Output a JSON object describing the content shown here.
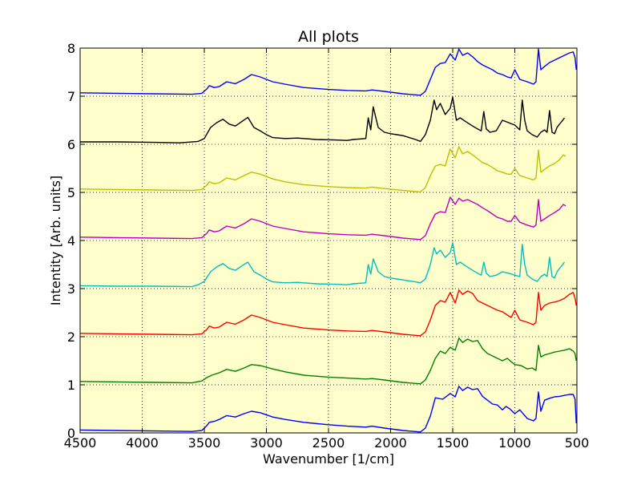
{
  "chart_data": {
    "type": "line",
    "title": "All plots",
    "xlabel": "Wavenumber [1/cm]",
    "ylabel": "Intentity [Arb. units]",
    "xlim": [
      4500,
      500
    ],
    "ylim": [
      0,
      8
    ],
    "x_reversed": true,
    "grid": true,
    "background_color": "#ffffcc",
    "xticks": [
      4500,
      4000,
      3500,
      3000,
      2500,
      2000,
      1500,
      1000,
      500
    ],
    "yticks": [
      0,
      1,
      2,
      3,
      4,
      5,
      6,
      7,
      8
    ],
    "series": [
      {
        "color": "#0000ff",
        "x": [
          4500,
          4200,
          3900,
          3600,
          3520,
          3480,
          3460,
          3420,
          3380,
          3320,
          3250,
          3180,
          3120,
          3050,
          2950,
          2850,
          2700,
          2500,
          2350,
          2200,
          2150,
          2050,
          1900,
          1760,
          1720,
          1680,
          1640,
          1580,
          1520,
          1480,
          1450,
          1420,
          1380,
          1340,
          1300,
          1260,
          1220,
          1180,
          1140,
          1100,
          1070,
          1040,
          1000,
          960,
          900,
          850,
          830,
          810,
          790,
          760,
          720,
          680,
          640,
          600,
          560,
          530,
          515,
          505
        ],
        "y": [
          0.06,
          0.05,
          0.04,
          0.03,
          0.05,
          0.15,
          0.22,
          0.24,
          0.28,
          0.36,
          0.33,
          0.4,
          0.45,
          0.42,
          0.33,
          0.28,
          0.22,
          0.17,
          0.14,
          0.12,
          0.14,
          0.1,
          0.05,
          0.02,
          0.1,
          0.35,
          0.73,
          0.7,
          0.82,
          0.75,
          0.97,
          0.88,
          0.95,
          0.9,
          0.92,
          0.76,
          0.68,
          0.6,
          0.58,
          0.48,
          0.55,
          0.5,
          0.4,
          0.48,
          0.3,
          0.25,
          0.3,
          0.85,
          0.45,
          0.68,
          0.72,
          0.75,
          0.76,
          0.78,
          0.8,
          0.8,
          0.7,
          0.2
        ]
      },
      {
        "color": "#008000",
        "x": [
          4500,
          4200,
          3900,
          3600,
          3520,
          3480,
          3440,
          3380,
          3320,
          3250,
          3180,
          3120,
          3050,
          2950,
          2850,
          2700,
          2500,
          2350,
          2200,
          2150,
          2050,
          1900,
          1760,
          1720,
          1680,
          1640,
          1600,
          1560,
          1520,
          1480,
          1450,
          1420,
          1380,
          1340,
          1300,
          1260,
          1220,
          1180,
          1140,
          1100,
          1060,
          1030,
          1000,
          950,
          900,
          860,
          830,
          810,
          790,
          760,
          720,
          680,
          640,
          600,
          560,
          530,
          515,
          505
        ],
        "y": [
          1.07,
          1.06,
          1.05,
          1.04,
          1.08,
          1.15,
          1.2,
          1.25,
          1.32,
          1.28,
          1.35,
          1.42,
          1.4,
          1.33,
          1.27,
          1.2,
          1.16,
          1.14,
          1.12,
          1.13,
          1.1,
          1.05,
          1.02,
          1.1,
          1.3,
          1.55,
          1.7,
          1.65,
          1.78,
          1.72,
          1.97,
          1.88,
          1.95,
          1.9,
          1.92,
          1.75,
          1.65,
          1.6,
          1.55,
          1.5,
          1.55,
          1.48,
          1.42,
          1.4,
          1.33,
          1.35,
          1.3,
          1.82,
          1.58,
          1.62,
          1.65,
          1.68,
          1.7,
          1.72,
          1.75,
          1.7,
          1.65,
          1.5
        ]
      },
      {
        "color": "#ff0000",
        "x": [
          4500,
          4200,
          3900,
          3600,
          3520,
          3480,
          3460,
          3420,
          3380,
          3320,
          3250,
          3180,
          3120,
          3050,
          2950,
          2850,
          2700,
          2500,
          2350,
          2200,
          2150,
          2050,
          1900,
          1760,
          1720,
          1680,
          1640,
          1600,
          1560,
          1520,
          1480,
          1450,
          1420,
          1380,
          1340,
          1300,
          1260,
          1220,
          1180,
          1140,
          1100,
          1060,
          1030,
          1000,
          960,
          900,
          850,
          830,
          810,
          790,
          760,
          720,
          680,
          640,
          600,
          560,
          530,
          515,
          505
        ],
        "y": [
          2.07,
          2.06,
          2.05,
          2.04,
          2.06,
          2.15,
          2.22,
          2.18,
          2.2,
          2.3,
          2.26,
          2.35,
          2.45,
          2.4,
          2.3,
          2.25,
          2.18,
          2.14,
          2.12,
          2.11,
          2.13,
          2.1,
          2.05,
          2.02,
          2.1,
          2.35,
          2.65,
          2.75,
          2.72,
          2.92,
          2.7,
          2.97,
          2.88,
          2.95,
          2.9,
          2.75,
          2.7,
          2.65,
          2.6,
          2.55,
          2.52,
          2.45,
          2.4,
          2.55,
          2.35,
          2.3,
          2.25,
          2.3,
          2.92,
          2.55,
          2.65,
          2.7,
          2.72,
          2.75,
          2.8,
          2.88,
          2.92,
          2.8,
          2.65
        ]
      },
      {
        "color": "#00bfbf",
        "x": [
          4500,
          4200,
          3900,
          3600,
          3550,
          3500,
          3450,
          3400,
          3350,
          3300,
          3250,
          3200,
          3150,
          3100,
          3050,
          3000,
          2950,
          2850,
          2750,
          2600,
          2450,
          2350,
          2300,
          2200,
          2180,
          2160,
          2140,
          2100,
          2050,
          2000,
          1950,
          1900,
          1800,
          1760,
          1720,
          1680,
          1650,
          1630,
          1600,
          1560,
          1520,
          1500,
          1470,
          1440,
          1400,
          1340,
          1300,
          1270,
          1250,
          1230,
          1200,
          1150,
          1100,
          1050,
          1000,
          960,
          940,
          920,
          900,
          860,
          820,
          790,
          760,
          740,
          720,
          700,
          680,
          660,
          640,
          620,
          600
        ],
        "y": [
          3.06,
          3.05,
          3.05,
          3.04,
          3.08,
          3.15,
          3.35,
          3.45,
          3.52,
          3.42,
          3.38,
          3.47,
          3.55,
          3.35,
          3.28,
          3.2,
          3.14,
          3.12,
          3.13,
          3.1,
          3.09,
          3.08,
          3.1,
          3.12,
          3.5,
          3.3,
          3.62,
          3.35,
          3.25,
          3.22,
          3.2,
          3.18,
          3.14,
          3.12,
          3.2,
          3.5,
          3.85,
          3.72,
          3.8,
          3.65,
          3.75,
          3.95,
          3.5,
          3.55,
          3.48,
          3.38,
          3.32,
          3.28,
          3.55,
          3.32,
          3.25,
          3.28,
          3.35,
          3.32,
          3.28,
          3.25,
          3.92,
          3.5,
          3.28,
          3.2,
          3.15,
          3.25,
          3.3,
          3.25,
          3.65,
          3.25,
          3.22,
          3.35,
          3.42,
          3.48,
          3.55
        ]
      },
      {
        "color": "#bf00bf",
        "x": [
          4500,
          4200,
          3900,
          3600,
          3520,
          3480,
          3460,
          3420,
          3380,
          3320,
          3250,
          3180,
          3120,
          3050,
          2950,
          2850,
          2700,
          2500,
          2350,
          2200,
          2150,
          2050,
          1900,
          1760,
          1720,
          1680,
          1640,
          1600,
          1560,
          1520,
          1480,
          1450,
          1420,
          1380,
          1340,
          1300,
          1260,
          1220,
          1180,
          1140,
          1100,
          1060,
          1030,
          1000,
          960,
          900,
          850,
          830,
          810,
          790,
          760,
          720,
          680,
          640,
          610,
          590
        ],
        "y": [
          4.07,
          4.06,
          4.05,
          4.04,
          4.06,
          4.15,
          4.22,
          4.18,
          4.2,
          4.3,
          4.26,
          4.35,
          4.45,
          4.4,
          4.3,
          4.25,
          4.18,
          4.14,
          4.12,
          4.11,
          4.13,
          4.1,
          4.05,
          4.02,
          4.1,
          4.35,
          4.55,
          4.6,
          4.58,
          4.9,
          4.75,
          4.88,
          4.82,
          4.85,
          4.8,
          4.75,
          4.68,
          4.62,
          4.55,
          4.48,
          4.45,
          4.4,
          4.4,
          4.52,
          4.38,
          4.32,
          4.28,
          4.32,
          4.85,
          4.4,
          4.45,
          4.52,
          4.58,
          4.65,
          4.75,
          4.72
        ]
      },
      {
        "color": "#bfbf00",
        "x": [
          4500,
          4200,
          3900,
          3600,
          3520,
          3480,
          3460,
          3420,
          3380,
          3320,
          3250,
          3180,
          3120,
          3050,
          2950,
          2850,
          2700,
          2500,
          2350,
          2200,
          2150,
          2050,
          1900,
          1760,
          1720,
          1680,
          1640,
          1600,
          1560,
          1520,
          1480,
          1450,
          1420,
          1380,
          1340,
          1300,
          1260,
          1220,
          1180,
          1140,
          1100,
          1060,
          1030,
          1000,
          960,
          900,
          850,
          830,
          810,
          790,
          760,
          720,
          680,
          640,
          610,
          590
        ],
        "y": [
          5.07,
          5.06,
          5.05,
          5.04,
          5.06,
          5.15,
          5.22,
          5.18,
          5.2,
          5.3,
          5.26,
          5.35,
          5.42,
          5.38,
          5.28,
          5.22,
          5.16,
          5.12,
          5.1,
          5.09,
          5.11,
          5.08,
          5.04,
          5.01,
          5.1,
          5.35,
          5.55,
          5.58,
          5.55,
          5.9,
          5.72,
          5.95,
          5.8,
          5.85,
          5.78,
          5.7,
          5.62,
          5.58,
          5.52,
          5.45,
          5.42,
          5.38,
          5.38,
          5.5,
          5.35,
          5.3,
          5.26,
          5.3,
          5.88,
          5.42,
          5.48,
          5.55,
          5.6,
          5.68,
          5.78,
          5.75
        ]
      },
      {
        "color": "#000000",
        "x": [
          4500,
          4200,
          3900,
          3700,
          3550,
          3500,
          3450,
          3400,
          3350,
          3300,
          3250,
          3200,
          3150,
          3100,
          3050,
          3000,
          2950,
          2850,
          2750,
          2600,
          2450,
          2350,
          2300,
          2200,
          2180,
          2160,
          2140,
          2100,
          2050,
          2000,
          1950,
          1900,
          1800,
          1760,
          1720,
          1680,
          1650,
          1630,
          1600,
          1560,
          1520,
          1500,
          1470,
          1440,
          1400,
          1340,
          1300,
          1270,
          1250,
          1230,
          1200,
          1150,
          1100,
          1050,
          1000,
          960,
          940,
          920,
          900,
          860,
          820,
          790,
          760,
          740,
          720,
          700,
          680,
          660,
          640,
          620,
          600
        ],
        "y": [
          6.05,
          6.05,
          6.04,
          6.03,
          6.06,
          6.12,
          6.35,
          6.45,
          6.52,
          6.42,
          6.38,
          6.47,
          6.56,
          6.35,
          6.28,
          6.2,
          6.14,
          6.12,
          6.13,
          6.1,
          6.09,
          6.08,
          6.1,
          6.12,
          6.55,
          6.3,
          6.78,
          6.35,
          6.25,
          6.22,
          6.2,
          6.18,
          6.1,
          6.06,
          6.2,
          6.5,
          6.92,
          6.72,
          6.85,
          6.62,
          6.75,
          6.98,
          6.5,
          6.55,
          6.48,
          6.38,
          6.32,
          6.28,
          6.68,
          6.32,
          6.25,
          6.28,
          6.5,
          6.45,
          6.4,
          6.3,
          6.92,
          6.5,
          6.28,
          6.2,
          6.15,
          6.25,
          6.3,
          6.25,
          6.7,
          6.25,
          6.22,
          6.35,
          6.42,
          6.48,
          6.55
        ]
      },
      {
        "color": "#0000ff",
        "x": [
          4500,
          4200,
          3900,
          3600,
          3520,
          3480,
          3460,
          3420,
          3380,
          3320,
          3250,
          3180,
          3120,
          3050,
          2950,
          2850,
          2700,
          2500,
          2350,
          2200,
          2150,
          2050,
          1900,
          1760,
          1720,
          1680,
          1640,
          1600,
          1560,
          1520,
          1480,
          1450,
          1420,
          1380,
          1340,
          1300,
          1260,
          1220,
          1180,
          1140,
          1100,
          1060,
          1030,
          1000,
          960,
          900,
          850,
          830,
          810,
          790,
          760,
          720,
          680,
          640,
          600,
          560,
          530,
          515,
          505
        ],
        "y": [
          7.07,
          7.06,
          7.05,
          7.04,
          7.06,
          7.15,
          7.22,
          7.18,
          7.2,
          7.3,
          7.26,
          7.35,
          7.45,
          7.4,
          7.3,
          7.25,
          7.18,
          7.14,
          7.12,
          7.11,
          7.13,
          7.1,
          7.05,
          7.02,
          7.1,
          7.35,
          7.6,
          7.68,
          7.7,
          7.88,
          7.75,
          7.98,
          7.85,
          7.9,
          7.82,
          7.72,
          7.65,
          7.6,
          7.55,
          7.48,
          7.45,
          7.4,
          7.38,
          7.55,
          7.35,
          7.3,
          7.25,
          7.3,
          7.98,
          7.55,
          7.62,
          7.7,
          7.75,
          7.8,
          7.85,
          7.9,
          7.92,
          7.8,
          7.55
        ]
      }
    ]
  }
}
